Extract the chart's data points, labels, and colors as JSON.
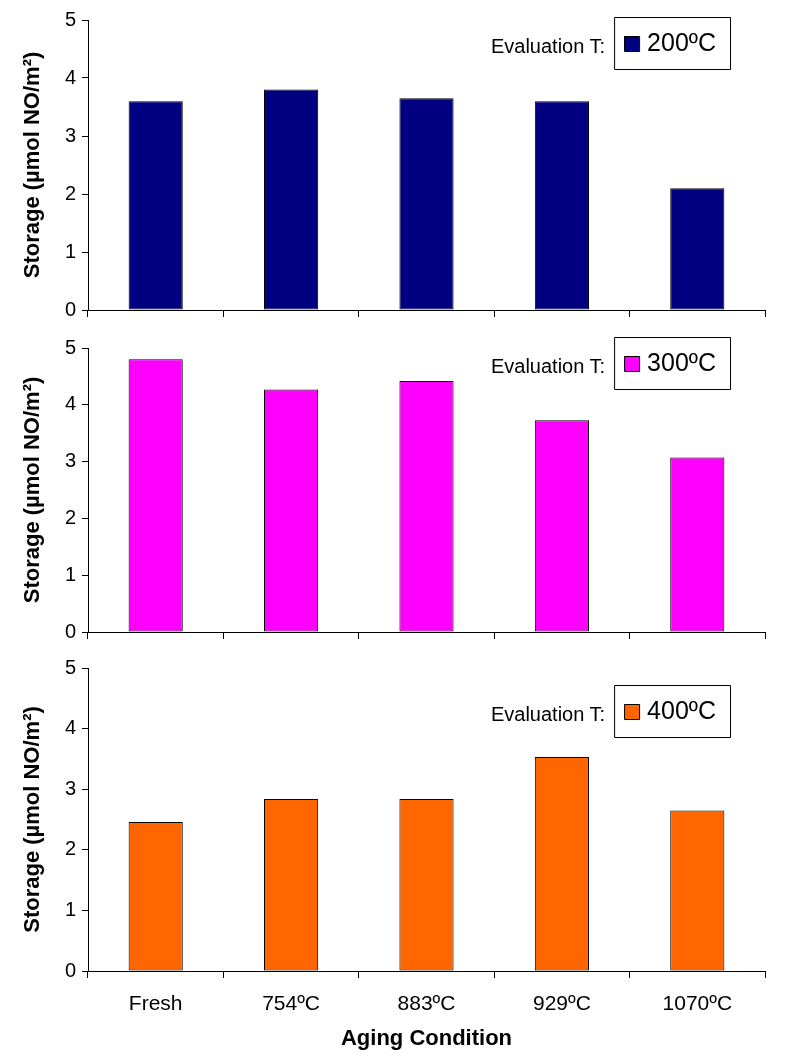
{
  "chart_data": [
    {
      "type": "bar",
      "categories": [
        null,
        null,
        null,
        null,
        null
      ],
      "series": [
        {
          "name": "200ºC",
          "color": "#000080",
          "values": [
            3.6,
            3.8,
            3.65,
            3.6,
            2.1
          ]
        }
      ],
      "ylabel": "Storage (µmol NO/m²)",
      "legend_title": "Evaluation T:",
      "legend": "top right",
      "ylim": [
        0,
        5
      ],
      "yticks": [
        0,
        1,
        2,
        3,
        4,
        5
      ]
    },
    {
      "type": "bar",
      "categories": [
        null,
        null,
        null,
        null,
        null
      ],
      "series": [
        {
          "name": "300ºC",
          "color": "#ff00ff",
          "values": [
            4.8,
            4.27,
            4.42,
            3.73,
            3.07
          ]
        }
      ],
      "ylabel": "Storage (µmol NO/m²)",
      "legend_title": "Evaluation T:",
      "legend": "top right",
      "ylim": [
        0,
        5
      ],
      "yticks": [
        0,
        1,
        2,
        3,
        4,
        5
      ]
    },
    {
      "type": "bar",
      "categories": [
        "Fresh",
        "754ºC",
        "883ºC",
        "929ºC",
        "1070ºC"
      ],
      "series": [
        {
          "name": "400ºC",
          "color": "#ff6600",
          "values": [
            2.46,
            2.84,
            2.84,
            3.53,
            2.65
          ]
        }
      ],
      "xlabel": "Aging Condition",
      "ylabel": "Storage (µmol NO/m²)",
      "legend_title": "Evaluation T:",
      "legend": "top right",
      "ylim": [
        0,
        5
      ],
      "yticks": [
        0,
        1,
        2,
        3,
        4,
        5
      ]
    }
  ]
}
